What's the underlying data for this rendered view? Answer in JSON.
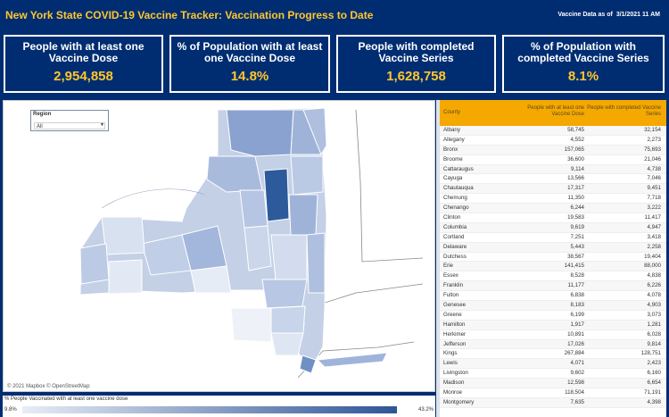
{
  "header": {
    "title": "New York State COVID-19 Vaccine Tracker: Vaccination Progress to Date",
    "as_of_label": "Vaccine Data as of",
    "as_of_value": "3/1/2021 11 AM"
  },
  "kpis": [
    {
      "label": "People with at least one Vaccine Dose",
      "value": "2,954,858"
    },
    {
      "label": "% of Population with at least one Vaccine Dose",
      "value": "14.8%"
    },
    {
      "label": "People with completed Vaccine Series",
      "value": "1,628,758"
    },
    {
      "label": "% of Population with completed Vaccine Series",
      "value": "8.1%"
    }
  ],
  "map": {
    "region_label": "Region",
    "region_value": "All",
    "attribution": "© 2021 Mapbox © OpenStreetMap"
  },
  "legend": {
    "title": "% People Vaccinated with at least one vaccine dose",
    "min": "9.8%",
    "max": "43.2%",
    "color_low": "#e8edf5",
    "color_high": "#2f5597"
  },
  "table": {
    "headers": [
      "County",
      "People with at least one Vaccine Dose",
      "People with completed Vaccine Series"
    ],
    "rows": [
      [
        "Albany",
        "58,745",
        "32,154"
      ],
      [
        "Allegany",
        "4,552",
        "2,273"
      ],
      [
        "Bronx",
        "157,065",
        "75,693"
      ],
      [
        "Broome",
        "36,600",
        "21,046"
      ],
      [
        "Cattaraugus",
        "9,114",
        "4,738"
      ],
      [
        "Cayuga",
        "13,566",
        "7,046"
      ],
      [
        "Chautauqua",
        "17,317",
        "9,451"
      ],
      [
        "Chemung",
        "11,350",
        "7,718"
      ],
      [
        "Chenango",
        "6,244",
        "3,222"
      ],
      [
        "Clinton",
        "19,583",
        "11,417"
      ],
      [
        "Columbia",
        "9,619",
        "4,947"
      ],
      [
        "Cortland",
        "7,251",
        "3,418"
      ],
      [
        "Delaware",
        "5,443",
        "2,258"
      ],
      [
        "Dutchess",
        "38,567",
        "19,404"
      ],
      [
        "Erie",
        "141,415",
        "88,000"
      ],
      [
        "Essex",
        "8,528",
        "4,838"
      ],
      [
        "Franklin",
        "11,177",
        "6,226"
      ],
      [
        "Fulton",
        "6,838",
        "4,078"
      ],
      [
        "Genesee",
        "8,183",
        "4,903"
      ],
      [
        "Greene",
        "6,199",
        "3,073"
      ],
      [
        "Hamilton",
        "1,917",
        "1,281"
      ],
      [
        "Herkimer",
        "10,891",
        "6,028"
      ],
      [
        "Jefferson",
        "17,026",
        "9,814"
      ],
      [
        "Kings",
        "267,884",
        "128,751"
      ],
      [
        "Lewis",
        "4,071",
        "2,423"
      ],
      [
        "Livingston",
        "9,602",
        "6,160"
      ],
      [
        "Madison",
        "12,598",
        "6,654"
      ],
      [
        "Monroe",
        "118,504",
        "71,191"
      ],
      [
        "Montgomery",
        "7,635",
        "4,398"
      ]
    ]
  }
}
